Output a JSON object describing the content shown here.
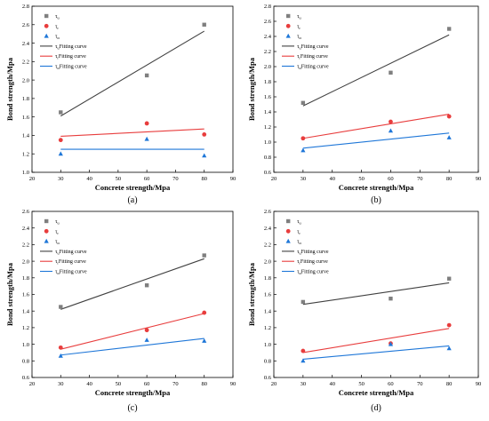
{
  "figure": {
    "panels": [
      "(a)",
      "(b)",
      "(c)",
      "(d)"
    ]
  },
  "legend": {
    "entries": [
      {
        "symbol": "τu",
        "base": "τ",
        "sub": "u",
        "marker": "square",
        "color": "#7f7f7f"
      },
      {
        "symbol": "τr",
        "base": "τ",
        "sub": "r",
        "marker": "circle",
        "color": "#e83d3d"
      },
      {
        "symbol": "τα",
        "base": "τ",
        "sub": "α",
        "marker": "triangle",
        "color": "#1f77d8"
      },
      {
        "symbol": "τuFitting curve",
        "base": "τ",
        "sub": "u",
        "text": "Fitting curve",
        "marker": "line",
        "color": "#404040"
      },
      {
        "symbol": "τrFitting curve",
        "base": "τ",
        "sub": "r",
        "text": "Fitting curve",
        "marker": "line",
        "color": "#e83d3d"
      },
      {
        "symbol": "ταFitting curve",
        "base": "τ",
        "sub": "α",
        "text": "Fitting curve",
        "marker": "line",
        "color": "#1f77d8"
      }
    ]
  },
  "chart_data": [
    {
      "type": "scatter",
      "panel": "(a)",
      "xlabel": "Concrete strength/Mpa",
      "ylabel": "Bond strength/Mpa",
      "xlim": [
        20,
        90
      ],
      "ylim": [
        1.0,
        2.8
      ],
      "xticks": [
        20,
        30,
        40,
        50,
        60,
        70,
        80,
        90
      ],
      "yticks": [
        1.0,
        1.2,
        1.4,
        1.6,
        1.8,
        2.0,
        2.2,
        2.4,
        2.6,
        2.8
      ],
      "series": [
        {
          "name": "τu",
          "x": [
            30,
            60,
            80
          ],
          "values": [
            1.65,
            2.05,
            2.6
          ],
          "fit": [
            [
              30,
              1.61
            ],
            [
              80,
              2.53
            ]
          ]
        },
        {
          "name": "τr",
          "x": [
            30,
            60,
            80
          ],
          "values": [
            1.35,
            1.53,
            1.41
          ],
          "fit": [
            [
              30,
              1.39
            ],
            [
              80,
              1.47
            ]
          ]
        },
        {
          "name": "τα",
          "x": [
            30,
            60,
            80
          ],
          "values": [
            1.2,
            1.36,
            1.18
          ],
          "fit": [
            [
              30,
              1.25
            ],
            [
              80,
              1.25
            ]
          ]
        }
      ]
    },
    {
      "type": "scatter",
      "panel": "(b)",
      "xlabel": "Concrete strength/Mpa",
      "ylabel": "Bond strength/Mpa",
      "xlim": [
        20,
        90
      ],
      "ylim": [
        0.6,
        2.8
      ],
      "xticks": [
        20,
        30,
        40,
        50,
        60,
        70,
        80,
        90
      ],
      "yticks": [
        0.6,
        0.8,
        1.0,
        1.2,
        1.4,
        1.6,
        1.8,
        2.0,
        2.2,
        2.4,
        2.6,
        2.8
      ],
      "series": [
        {
          "name": "τu",
          "x": [
            30,
            60,
            80
          ],
          "values": [
            1.52,
            1.92,
            2.5
          ],
          "fit": [
            [
              30,
              1.48
            ],
            [
              80,
              2.42
            ]
          ]
        },
        {
          "name": "τr",
          "x": [
            30,
            60,
            80
          ],
          "values": [
            1.05,
            1.27,
            1.34
          ],
          "fit": [
            [
              30,
              1.05
            ],
            [
              80,
              1.37
            ]
          ]
        },
        {
          "name": "τα",
          "x": [
            30,
            60,
            80
          ],
          "values": [
            0.89,
            1.15,
            1.06
          ],
          "fit": [
            [
              30,
              0.92
            ],
            [
              80,
              1.12
            ]
          ]
        }
      ]
    },
    {
      "type": "scatter",
      "panel": "(c)",
      "xlabel": "Concrete strength/Mpa",
      "ylabel": "Bond strength/Mpa",
      "xlim": [
        20,
        90
      ],
      "ylim": [
        0.6,
        2.6
      ],
      "xticks": [
        20,
        30,
        40,
        50,
        60,
        70,
        80,
        90
      ],
      "yticks": [
        0.6,
        0.8,
        1.0,
        1.2,
        1.4,
        1.6,
        1.8,
        2.0,
        2.2,
        2.4,
        2.6
      ],
      "series": [
        {
          "name": "τu",
          "x": [
            30,
            60,
            80
          ],
          "values": [
            1.45,
            1.71,
            2.07
          ],
          "fit": [
            [
              30,
              1.42
            ],
            [
              80,
              2.03
            ]
          ]
        },
        {
          "name": "τr",
          "x": [
            30,
            60,
            80
          ],
          "values": [
            0.96,
            1.17,
            1.38
          ],
          "fit": [
            [
              30,
              0.94
            ],
            [
              80,
              1.37
            ]
          ]
        },
        {
          "name": "τα",
          "x": [
            30,
            60,
            80
          ],
          "values": [
            0.86,
            1.05,
            1.04
          ],
          "fit": [
            [
              30,
              0.87
            ],
            [
              80,
              1.07
            ]
          ]
        }
      ]
    },
    {
      "type": "scatter",
      "panel": "(d)",
      "xlabel": "Concrete strength/Mpa",
      "ylabel": "Bond strength/Mpa",
      "xlim": [
        20,
        90
      ],
      "ylim": [
        0.6,
        2.6
      ],
      "xticks": [
        20,
        30,
        40,
        50,
        60,
        70,
        80,
        90
      ],
      "yticks": [
        0.6,
        0.8,
        1.0,
        1.2,
        1.4,
        1.6,
        1.8,
        2.0,
        2.2,
        2.4,
        2.6
      ],
      "series": [
        {
          "name": "τu",
          "x": [
            30,
            60,
            80
          ],
          "values": [
            1.51,
            1.55,
            1.79
          ],
          "fit": [
            [
              30,
              1.48
            ],
            [
              80,
              1.74
            ]
          ]
        },
        {
          "name": "τr",
          "x": [
            30,
            60,
            80
          ],
          "values": [
            0.92,
            1.01,
            1.23
          ],
          "fit": [
            [
              30,
              0.9
            ],
            [
              80,
              1.19
            ]
          ]
        },
        {
          "name": "τα",
          "x": [
            30,
            60,
            80
          ],
          "values": [
            0.8,
            1.0,
            0.95
          ],
          "fit": [
            [
              30,
              0.82
            ],
            [
              80,
              0.98
            ]
          ]
        }
      ]
    }
  ]
}
